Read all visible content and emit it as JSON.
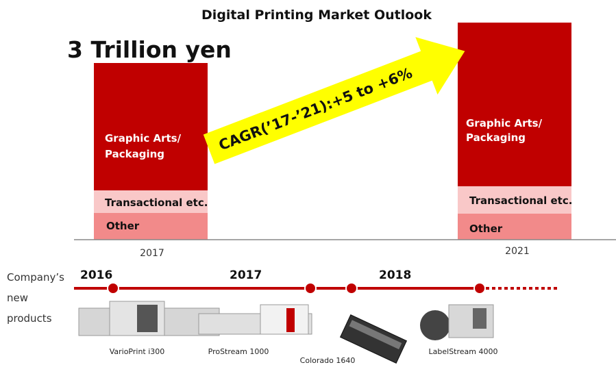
{
  "header": {
    "title": "Digital Printing Market Outlook",
    "headline": "3 Trillion yen"
  },
  "market": {
    "bars": [
      {
        "year": "2017",
        "segments": [
          [
            "Graphic Arts/",
            "Packaging"
          ],
          "Transactional etc.",
          "Other"
        ]
      },
      {
        "year": "2021",
        "segments": [
          [
            "Graphic Arts/",
            "Packaging"
          ],
          "Transactional etc.",
          "Other"
        ]
      }
    ],
    "growth": "CAGR(’17-’21):+5  to +6%"
  },
  "timeline": {
    "label": [
      "Company’s",
      "new",
      "products"
    ],
    "years": [
      "2016",
      "2017",
      "2018"
    ],
    "products": [
      "VarioPrint i300",
      "ProStream 1000",
      "Colorado 1640",
      "LabelStream 4000"
    ]
  }
}
